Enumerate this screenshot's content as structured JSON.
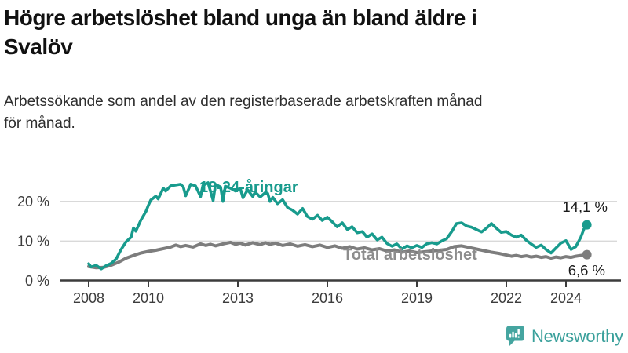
{
  "header": {
    "title": "Högre arbetslöshet bland unga än bland äldre i\nSvalöv",
    "subtitle": "Arbetssökande som andel av den registerbaserade arbetskraften månad\nför månad."
  },
  "chart_data": {
    "type": "line",
    "title": "Högre arbetslöshet bland unga än bland äldre i Svalöv",
    "subtitle": "Arbetssökande som andel av den registerbaserade arbetskraften månad för månad.",
    "xlabel": "",
    "ylabel": "",
    "xlim": [
      2007.0,
      2025.7
    ],
    "ylim": [
      0,
      30
    ],
    "grid": "horizontal",
    "legend_position": "inline-annotations",
    "y_ticks": [
      {
        "value": 0,
        "label": "0 %"
      },
      {
        "value": 10,
        "label": "10 %"
      },
      {
        "value": 20,
        "label": "20 %"
      }
    ],
    "x_ticks": [
      {
        "year": 2008,
        "label": "2008"
      },
      {
        "year": 2010,
        "label": "2010"
      },
      {
        "year": 2013,
        "label": "2013"
      },
      {
        "year": 2016,
        "label": "2016"
      },
      {
        "year": 2019,
        "label": "2019"
      },
      {
        "year": 2022,
        "label": "2022"
      },
      {
        "year": 2024,
        "label": "2024"
      }
    ],
    "series": [
      {
        "name": "18-24-åringar",
        "color": "#189b8d",
        "end_label": "14,1 %",
        "end_value": 14.1,
        "points": [
          [
            2008.0,
            4.3
          ],
          [
            2008.08,
            3.5
          ],
          [
            2008.25,
            3.9
          ],
          [
            2008.42,
            3.0
          ],
          [
            2008.58,
            3.8
          ],
          [
            2008.75,
            4.4
          ],
          [
            2008.92,
            5.5
          ],
          [
            2009.08,
            7.8
          ],
          [
            2009.25,
            9.8
          ],
          [
            2009.42,
            11.0
          ],
          [
            2009.5,
            13.3
          ],
          [
            2009.58,
            12.5
          ],
          [
            2009.75,
            15.3
          ],
          [
            2009.92,
            17.5
          ],
          [
            2010.0,
            19.0
          ],
          [
            2010.08,
            20.3
          ],
          [
            2010.25,
            21.3
          ],
          [
            2010.33,
            20.6
          ],
          [
            2010.5,
            23.3
          ],
          [
            2010.58,
            22.6
          ],
          [
            2010.75,
            23.9
          ],
          [
            2010.92,
            24.1
          ],
          [
            2011.08,
            24.3
          ],
          [
            2011.17,
            23.6
          ],
          [
            2011.25,
            21.4
          ],
          [
            2011.42,
            24.3
          ],
          [
            2011.58,
            23.9
          ],
          [
            2011.75,
            21.2
          ],
          [
            2011.83,
            24.0
          ],
          [
            2012.0,
            24.7
          ],
          [
            2012.17,
            20.2
          ],
          [
            2012.25,
            24.3
          ],
          [
            2012.42,
            23.6
          ],
          [
            2012.5,
            20.0
          ],
          [
            2012.58,
            23.8
          ],
          [
            2012.75,
            23.3
          ],
          [
            2012.92,
            22.6
          ],
          [
            2013.08,
            23.3
          ],
          [
            2013.17,
            20.9
          ],
          [
            2013.33,
            22.9
          ],
          [
            2013.5,
            21.2
          ],
          [
            2013.58,
            22.3
          ],
          [
            2013.75,
            21.1
          ],
          [
            2013.92,
            22.2
          ],
          [
            2014.0,
            22.0
          ],
          [
            2014.08,
            20.0
          ],
          [
            2014.17,
            21.0
          ],
          [
            2014.33,
            19.4
          ],
          [
            2014.5,
            20.4
          ],
          [
            2014.67,
            18.4
          ],
          [
            2014.83,
            17.8
          ],
          [
            2015.0,
            16.8
          ],
          [
            2015.17,
            18.2
          ],
          [
            2015.33,
            16.2
          ],
          [
            2015.5,
            15.5
          ],
          [
            2015.67,
            16.5
          ],
          [
            2015.83,
            15.2
          ],
          [
            2016.0,
            16.0
          ],
          [
            2016.17,
            14.8
          ],
          [
            2016.33,
            13.6
          ],
          [
            2016.5,
            14.6
          ],
          [
            2016.67,
            12.9
          ],
          [
            2016.83,
            13.6
          ],
          [
            2017.0,
            12.1
          ],
          [
            2017.17,
            12.4
          ],
          [
            2017.33,
            11.0
          ],
          [
            2017.5,
            11.8
          ],
          [
            2017.67,
            10.3
          ],
          [
            2017.83,
            11.0
          ],
          [
            2018.0,
            9.4
          ],
          [
            2018.17,
            8.7
          ],
          [
            2018.33,
            9.3
          ],
          [
            2018.5,
            8.0
          ],
          [
            2018.67,
            8.8
          ],
          [
            2018.83,
            8.3
          ],
          [
            2019.0,
            8.9
          ],
          [
            2019.17,
            8.4
          ],
          [
            2019.33,
            9.3
          ],
          [
            2019.5,
            9.6
          ],
          [
            2019.67,
            9.3
          ],
          [
            2019.83,
            10.0
          ],
          [
            2020.0,
            10.6
          ],
          [
            2020.17,
            12.4
          ],
          [
            2020.33,
            14.4
          ],
          [
            2020.5,
            14.6
          ],
          [
            2020.67,
            13.8
          ],
          [
            2020.83,
            13.5
          ],
          [
            2021.0,
            12.9
          ],
          [
            2021.17,
            12.3
          ],
          [
            2021.33,
            13.2
          ],
          [
            2021.5,
            14.4
          ],
          [
            2021.67,
            13.2
          ],
          [
            2021.83,
            12.2
          ],
          [
            2022.0,
            12.4
          ],
          [
            2022.17,
            11.5
          ],
          [
            2022.33,
            11.0
          ],
          [
            2022.5,
            11.5
          ],
          [
            2022.67,
            10.2
          ],
          [
            2022.83,
            9.3
          ],
          [
            2023.0,
            8.4
          ],
          [
            2023.17,
            9.0
          ],
          [
            2023.33,
            7.9
          ],
          [
            2023.5,
            7.0
          ],
          [
            2023.67,
            8.3
          ],
          [
            2023.83,
            9.5
          ],
          [
            2024.0,
            10.1
          ],
          [
            2024.17,
            7.9
          ],
          [
            2024.33,
            8.6
          ],
          [
            2024.5,
            11.0
          ],
          [
            2024.6,
            13.0
          ],
          [
            2024.7,
            14.1
          ]
        ]
      },
      {
        "name": "Total arbetslöshet",
        "color": "#7d7d7d",
        "end_label": "6,6 %",
        "end_value": 6.6,
        "points": [
          [
            2008.0,
            3.6
          ],
          [
            2008.25,
            3.3
          ],
          [
            2008.5,
            3.4
          ],
          [
            2008.75,
            3.9
          ],
          [
            2009.0,
            4.7
          ],
          [
            2009.25,
            5.7
          ],
          [
            2009.5,
            6.4
          ],
          [
            2009.75,
            7.0
          ],
          [
            2010.0,
            7.4
          ],
          [
            2010.25,
            7.7
          ],
          [
            2010.5,
            8.1
          ],
          [
            2010.75,
            8.5
          ],
          [
            2010.92,
            9.0
          ],
          [
            2011.08,
            8.6
          ],
          [
            2011.25,
            8.9
          ],
          [
            2011.5,
            8.5
          ],
          [
            2011.75,
            9.3
          ],
          [
            2011.92,
            8.9
          ],
          [
            2012.08,
            9.2
          ],
          [
            2012.25,
            8.8
          ],
          [
            2012.5,
            9.3
          ],
          [
            2012.75,
            9.7
          ],
          [
            2012.92,
            9.2
          ],
          [
            2013.08,
            9.5
          ],
          [
            2013.25,
            9.0
          ],
          [
            2013.5,
            9.6
          ],
          [
            2013.75,
            9.1
          ],
          [
            2013.92,
            9.6
          ],
          [
            2014.08,
            9.2
          ],
          [
            2014.25,
            9.5
          ],
          [
            2014.5,
            8.9
          ],
          [
            2014.75,
            9.3
          ],
          [
            2015.0,
            8.7
          ],
          [
            2015.25,
            9.1
          ],
          [
            2015.5,
            8.6
          ],
          [
            2015.75,
            9.0
          ],
          [
            2016.0,
            8.4
          ],
          [
            2016.25,
            8.8
          ],
          [
            2016.5,
            8.2
          ],
          [
            2016.75,
            8.6
          ],
          [
            2017.0,
            8.0
          ],
          [
            2017.25,
            8.3
          ],
          [
            2017.5,
            7.8
          ],
          [
            2017.75,
            8.1
          ],
          [
            2018.0,
            7.5
          ],
          [
            2018.25,
            7.8
          ],
          [
            2018.5,
            7.2
          ],
          [
            2018.75,
            7.5
          ],
          [
            2019.0,
            7.1
          ],
          [
            2019.25,
            7.3
          ],
          [
            2019.5,
            7.5
          ],
          [
            2019.75,
            7.7
          ],
          [
            2020.0,
            7.9
          ],
          [
            2020.25,
            8.6
          ],
          [
            2020.5,
            8.8
          ],
          [
            2020.75,
            8.4
          ],
          [
            2021.0,
            8.0
          ],
          [
            2021.25,
            7.6
          ],
          [
            2021.5,
            7.2
          ],
          [
            2021.75,
            6.9
          ],
          [
            2022.0,
            6.5
          ],
          [
            2022.17,
            6.2
          ],
          [
            2022.33,
            6.4
          ],
          [
            2022.5,
            6.1
          ],
          [
            2022.67,
            6.3
          ],
          [
            2022.83,
            6.0
          ],
          [
            2023.0,
            6.2
          ],
          [
            2023.17,
            5.9
          ],
          [
            2023.33,
            6.1
          ],
          [
            2023.5,
            5.7
          ],
          [
            2023.67,
            6.0
          ],
          [
            2023.83,
            5.8
          ],
          [
            2024.0,
            6.1
          ],
          [
            2024.17,
            5.9
          ],
          [
            2024.33,
            6.2
          ],
          [
            2024.5,
            6.4
          ],
          [
            2024.7,
            6.6
          ]
        ]
      }
    ]
  },
  "footer": {
    "brand": "Newsworthy",
    "logo_icon": "speech-bubble-bar-chart-icon",
    "brand_color": "#3aa09b"
  }
}
